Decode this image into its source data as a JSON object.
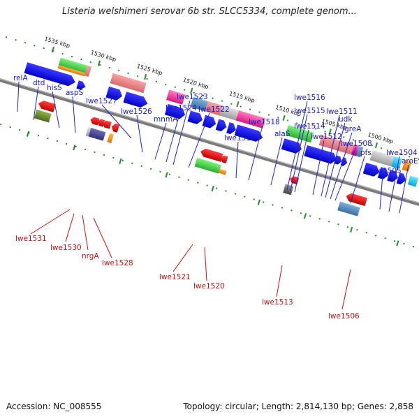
{
  "title": "Listeria welshimeri serovar 6b str. SLCC5334, complete genom...",
  "footer": {
    "accession": "Accession: NC_008555",
    "summary": "Topology: circular; Length: 2,814,130 bp; Genes: 2,858"
  },
  "scale_labels": [
    "1535 kbp",
    "1530 kbp",
    "1525 kbp",
    "1520 kbp",
    "1515 kbp",
    "1510 kbp",
    "1505 kbp",
    "1500 kbp"
  ],
  "forward_gene_labels": [
    "relA",
    "dtd",
    "hisS",
    "aspS",
    "lwe1527",
    "lwe1526",
    "lwe1524",
    "lwe1523",
    "mnmA",
    "lwe1522",
    "lwe1519",
    "lwe1518",
    "alaS",
    "lwe1516",
    "lwe1515",
    "lwe1514",
    "lwe1512",
    "lwe1511",
    "udk",
    "greA",
    "lwe1508",
    "pfs",
    "lwe1505",
    "lwe1504",
    "aroE"
  ],
  "reverse_gene_labels": [
    "lwe1531",
    "lwe1530",
    "nrgA",
    "lwe1528",
    "lwe1521",
    "lwe1520",
    "lwe1513",
    "lwe1506"
  ],
  "colors": {
    "forward_label": "#1a1ad0",
    "reverse_label": "#cc1111",
    "cds_arrow": "#1010e0",
    "reverse_arrow": "#ee1111",
    "backbone": "#777777"
  }
}
